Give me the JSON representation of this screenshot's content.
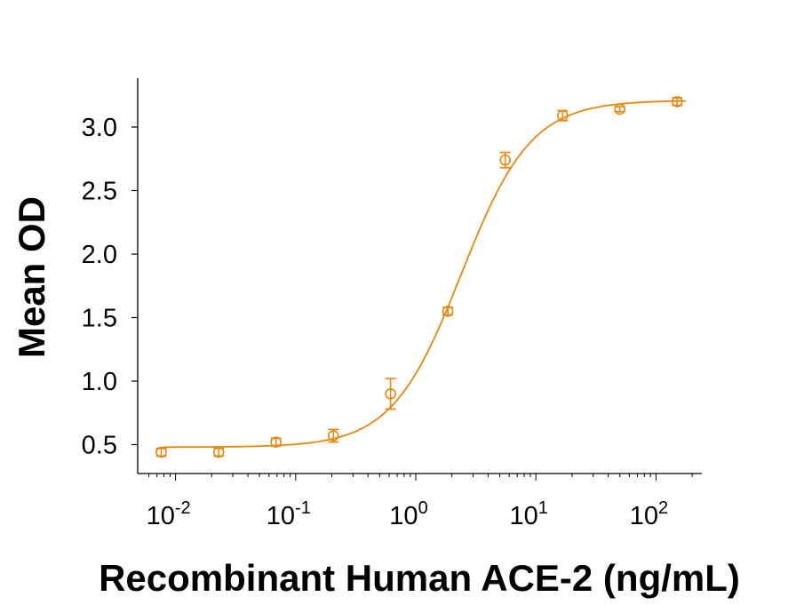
{
  "chart_data": {
    "type": "scatter",
    "title": "",
    "xlabel": "Recombinant Human ACE-2 (ng/mL)",
    "ylabel": "Mean OD",
    "x_scale": "log",
    "xlim": [
      0.005,
      300
    ],
    "ylim": [
      0.3,
      3.4
    ],
    "x_ticks": [
      {
        "base": "10",
        "exp": "-2"
      },
      {
        "base": "10",
        "exp": "-1"
      },
      {
        "base": "10",
        "exp": "0"
      },
      {
        "base": "10",
        "exp": "1"
      },
      {
        "base": "10",
        "exp": "2"
      }
    ],
    "y_ticks": [
      "0.5",
      "1.0",
      "1.5",
      "2.0",
      "2.5",
      "3.0"
    ],
    "grid": false,
    "color": "#e8870e",
    "series": [
      {
        "x": [
          0.0076,
          0.0229,
          0.0686,
          0.206,
          0.617,
          1.85,
          5.56,
          16.7,
          50,
          150
        ],
        "y": [
          0.44,
          0.44,
          0.52,
          0.57,
          0.9,
          1.55,
          2.74,
          3.09,
          3.14,
          3.2
        ],
        "error": [
          0.03,
          0.03,
          0.03,
          0.05,
          0.12,
          0.03,
          0.06,
          0.04,
          0.02,
          0.03
        ]
      }
    ],
    "fit": {
      "model": "4PL",
      "bottom": 0.48,
      "top": 3.21,
      "ec50": 2.4,
      "hill": 1.5
    }
  }
}
